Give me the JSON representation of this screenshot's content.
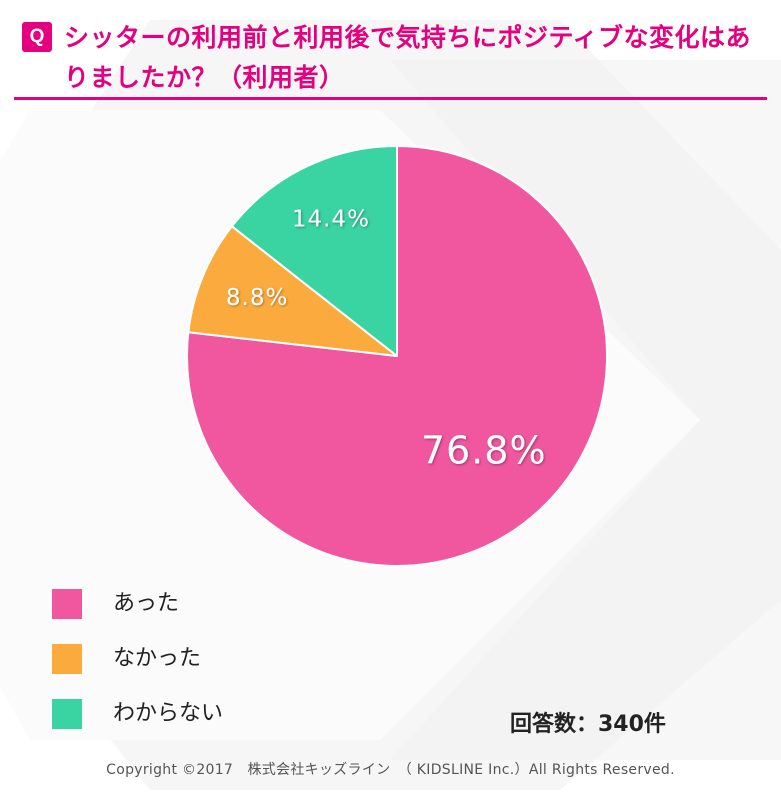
{
  "question": {
    "badge": "Q",
    "title": "シッターの利用前と利用後で気持ちにポジティブな変化はありましたか？（利用者）"
  },
  "colors": {
    "accent": "#e4007f",
    "yes": "#f0579e",
    "no": "#fbab3e",
    "unknown": "#3ad3a2"
  },
  "chart_data": {
    "type": "pie",
    "slices": [
      {
        "label": "あった",
        "value": 76.8,
        "display": "76.8%",
        "color": "#f0579e"
      },
      {
        "label": "なかった",
        "value": 8.8,
        "display": "8.8%",
        "color": "#fbab3e"
      },
      {
        "label": "わからない",
        "value": 14.4,
        "display": "14.4%",
        "color": "#3ad3a2"
      }
    ],
    "start_angle_deg": 0,
    "direction": "clockwise",
    "legend_position": "bottom-left"
  },
  "count_label": "回答数：340件",
  "footer": "Copyright ©2017　株式会社キッズライン　（ KIDSLINE Inc.）All Rights Reserved."
}
